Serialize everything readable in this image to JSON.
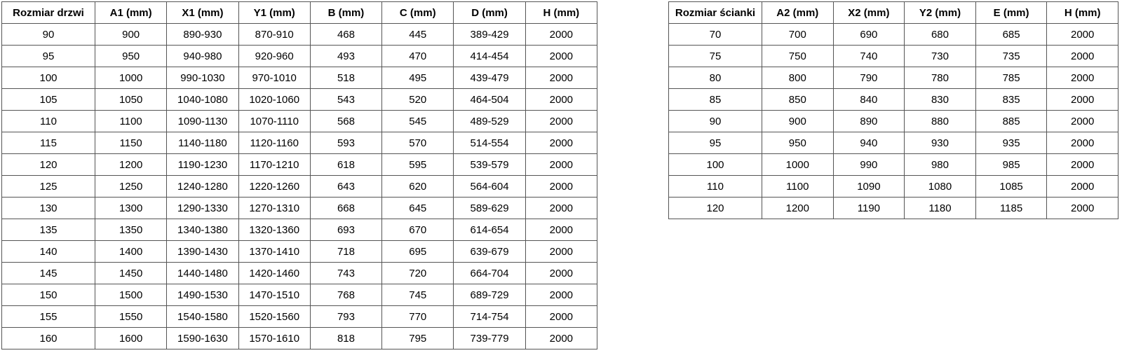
{
  "colors": {
    "border": "#555555",
    "text": "#000000",
    "background": "#ffffff"
  },
  "tables": [
    {
      "id": "door-table",
      "name": "door-size-table",
      "headers": [
        "Rozmiar drzwi",
        "A1 (mm)",
        "X1 (mm)",
        "Y1 (mm)",
        "B (mm)",
        "C (mm)",
        "D (mm)",
        "H (mm)"
      ],
      "rows": [
        [
          "90",
          "900",
          "890-930",
          "870-910",
          "468",
          "445",
          "389-429",
          "2000"
        ],
        [
          "95",
          "950",
          "940-980",
          "920-960",
          "493",
          "470",
          "414-454",
          "2000"
        ],
        [
          "100",
          "1000",
          "990-1030",
          "970-1010",
          "518",
          "495",
          "439-479",
          "2000"
        ],
        [
          "105",
          "1050",
          "1040-1080",
          "1020-1060",
          "543",
          "520",
          "464-504",
          "2000"
        ],
        [
          "110",
          "1100",
          "1090-1130",
          "1070-1110",
          "568",
          "545",
          "489-529",
          "2000"
        ],
        [
          "115",
          "1150",
          "1140-1180",
          "1120-1160",
          "593",
          "570",
          "514-554",
          "2000"
        ],
        [
          "120",
          "1200",
          "1190-1230",
          "1170-1210",
          "618",
          "595",
          "539-579",
          "2000"
        ],
        [
          "125",
          "1250",
          "1240-1280",
          "1220-1260",
          "643",
          "620",
          "564-604",
          "2000"
        ],
        [
          "130",
          "1300",
          "1290-1330",
          "1270-1310",
          "668",
          "645",
          "589-629",
          "2000"
        ],
        [
          "135",
          "1350",
          "1340-1380",
          "1320-1360",
          "693",
          "670",
          "614-654",
          "2000"
        ],
        [
          "140",
          "1400",
          "1390-1430",
          "1370-1410",
          "718",
          "695",
          "639-679",
          "2000"
        ],
        [
          "145",
          "1450",
          "1440-1480",
          "1420-1460",
          "743",
          "720",
          "664-704",
          "2000"
        ],
        [
          "150",
          "1500",
          "1490-1530",
          "1470-1510",
          "768",
          "745",
          "689-729",
          "2000"
        ],
        [
          "155",
          "1550",
          "1540-1580",
          "1520-1560",
          "793",
          "770",
          "714-754",
          "2000"
        ],
        [
          "160",
          "1600",
          "1590-1630",
          "1570-1610",
          "818",
          "795",
          "739-779",
          "2000"
        ]
      ],
      "first_col_width": 133
    },
    {
      "id": "wall-table",
      "name": "wall-size-table",
      "headers": [
        "Rozmiar ścianki",
        "A2 (mm)",
        "X2 (mm)",
        "Y2 (mm)",
        "E (mm)",
        "H (mm)"
      ],
      "rows": [
        [
          "70",
          "700",
          "690",
          "680",
          "685",
          "2000"
        ],
        [
          "75",
          "750",
          "740",
          "730",
          "735",
          "2000"
        ],
        [
          "80",
          "800",
          "790",
          "780",
          "785",
          "2000"
        ],
        [
          "85",
          "850",
          "840",
          "830",
          "835",
          "2000"
        ],
        [
          "90",
          "900",
          "890",
          "880",
          "885",
          "2000"
        ],
        [
          "95",
          "950",
          "940",
          "930",
          "935",
          "2000"
        ],
        [
          "100",
          "1000",
          "990",
          "980",
          "985",
          "2000"
        ],
        [
          "110",
          "1100",
          "1090",
          "1080",
          "1085",
          "2000"
        ],
        [
          "120",
          "1200",
          "1190",
          "1180",
          "1185",
          "2000"
        ]
      ],
      "first_col_width": 133
    }
  ]
}
